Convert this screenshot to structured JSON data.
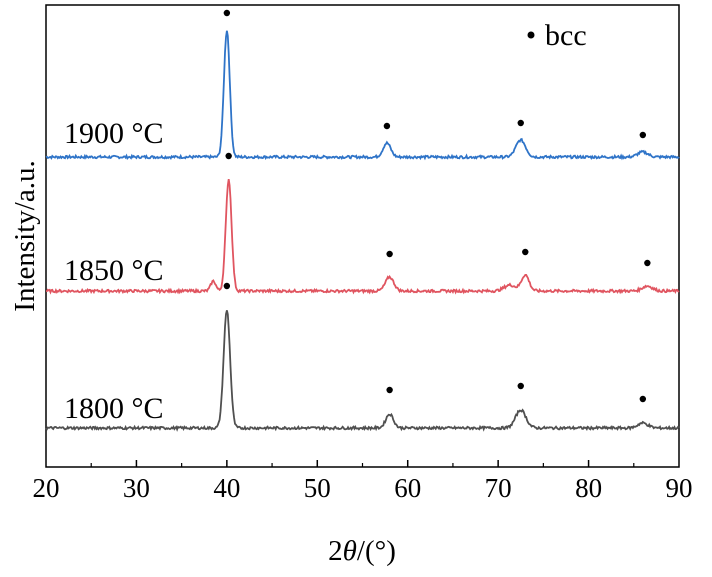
{
  "chart_data": {
    "type": "line",
    "xlabel_prefix": "2",
    "xlabel_var": "θ",
    "xlabel_suffix": "/(°)",
    "ylabel": "Intensity/a.u.",
    "xlim": [
      20,
      90
    ],
    "xticks": [
      20,
      30,
      40,
      50,
      60,
      70,
      80,
      90
    ],
    "grid": false,
    "legend": {
      "position": "top-right",
      "marker": "dot",
      "label": "bcc"
    },
    "series": [
      {
        "name": "1900 °C",
        "color": "#2f74c8",
        "baseline": 12,
        "peaks": [
          {
            "x": 40.0,
            "height": 127,
            "width": 0.45
          },
          {
            "x": 57.7,
            "height": 14,
            "width": 0.6
          },
          {
            "x": 72.5,
            "height": 17,
            "width": 0.75
          },
          {
            "x": 86.0,
            "height": 5,
            "width": 0.8
          }
        ],
        "markers": [
          40.0,
          57.7,
          72.5,
          86.0
        ]
      },
      {
        "name": "1850 °C",
        "color": "#e05560",
        "baseline": 8,
        "peaks": [
          {
            "x": 40.2,
            "height": 112,
            "width": 0.45
          },
          {
            "x": 38.5,
            "height": 10,
            "width": 0.4
          },
          {
            "x": 58.0,
            "height": 14,
            "width": 0.65
          },
          {
            "x": 73.0,
            "height": 16,
            "width": 0.6
          },
          {
            "x": 71.3,
            "height": 6,
            "width": 0.9
          },
          {
            "x": 86.5,
            "height": 5,
            "width": 0.8
          }
        ],
        "markers": [
          40.2,
          58.0,
          73.0,
          86.5
        ]
      },
      {
        "name": "1800 °C",
        "color": "#505050",
        "baseline": 6,
        "peaks": [
          {
            "x": 40.0,
            "height": 118,
            "width": 0.5
          },
          {
            "x": 58.0,
            "height": 14,
            "width": 0.6
          },
          {
            "x": 72.5,
            "height": 18,
            "width": 0.8
          },
          {
            "x": 86.0,
            "height": 5,
            "width": 0.8
          }
        ],
        "markers": [
          40.0,
          58.0,
          72.5,
          86.0
        ]
      }
    ]
  }
}
